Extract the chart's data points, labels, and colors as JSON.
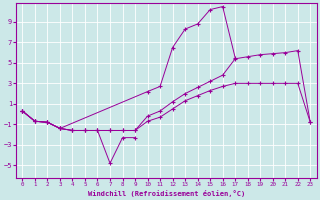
{
  "bg_color": "#cce8e8",
  "line_color": "#990099",
  "grid_color": "#ffffff",
  "xlabel": "Windchill (Refroidissement éolien,°C)",
  "ylim": [
    -6.2,
    10.8
  ],
  "xlim": [
    -0.5,
    23.5
  ],
  "yticks": [
    -5,
    -3,
    -1,
    1,
    3,
    5,
    7,
    9
  ],
  "xticks": [
    0,
    1,
    2,
    3,
    4,
    5,
    6,
    7,
    8,
    9,
    10,
    11,
    12,
    13,
    14,
    15,
    16,
    17,
    18,
    19,
    20,
    21,
    22,
    23
  ],
  "figsize": [
    3.2,
    2.0
  ],
  "dpi": 100,
  "line_top_x": [
    0,
    1,
    2,
    3,
    10,
    11,
    12,
    13,
    14,
    15,
    16,
    17
  ],
  "line_top_y": [
    0.3,
    -0.7,
    -0.8,
    -1.4,
    2.2,
    2.7,
    6.5,
    8.3,
    8.8,
    10.2,
    10.5,
    5.5
  ],
  "line_dip_x": [
    0,
    1,
    2,
    3,
    4,
    5,
    6,
    7,
    8,
    9
  ],
  "line_dip_y": [
    0.3,
    -0.7,
    -0.8,
    -1.4,
    -1.6,
    -1.6,
    -1.6,
    -4.8,
    -2.3,
    -2.3
  ],
  "line_mid1_x": [
    0,
    1,
    2,
    3,
    4,
    5,
    6,
    7,
    8,
    9,
    10,
    11,
    12,
    13,
    14,
    15,
    16,
    17,
    18,
    19,
    20,
    21,
    22,
    23
  ],
  "line_mid1_y": [
    0.3,
    -0.7,
    -0.8,
    -1.4,
    -1.6,
    -1.6,
    -1.6,
    -1.6,
    -1.6,
    -1.6,
    -0.7,
    -0.3,
    0.5,
    1.3,
    1.8,
    2.3,
    2.7,
    3.0,
    3.0,
    3.0,
    3.0,
    3.0,
    3.0,
    -0.8
  ],
  "line_mid2_x": [
    0,
    1,
    2,
    3,
    4,
    5,
    6,
    7,
    8,
    9,
    10,
    11,
    12,
    13,
    14,
    15,
    16,
    17,
    18,
    19,
    20,
    21,
    22,
    23
  ],
  "line_mid2_y": [
    0.3,
    -0.7,
    -0.8,
    -1.4,
    -1.6,
    -1.6,
    -1.6,
    -1.6,
    -1.6,
    -1.6,
    -0.2,
    0.3,
    1.2,
    2.0,
    2.6,
    3.2,
    3.8,
    5.4,
    5.6,
    5.8,
    5.9,
    6.0,
    6.2,
    -0.8
  ]
}
